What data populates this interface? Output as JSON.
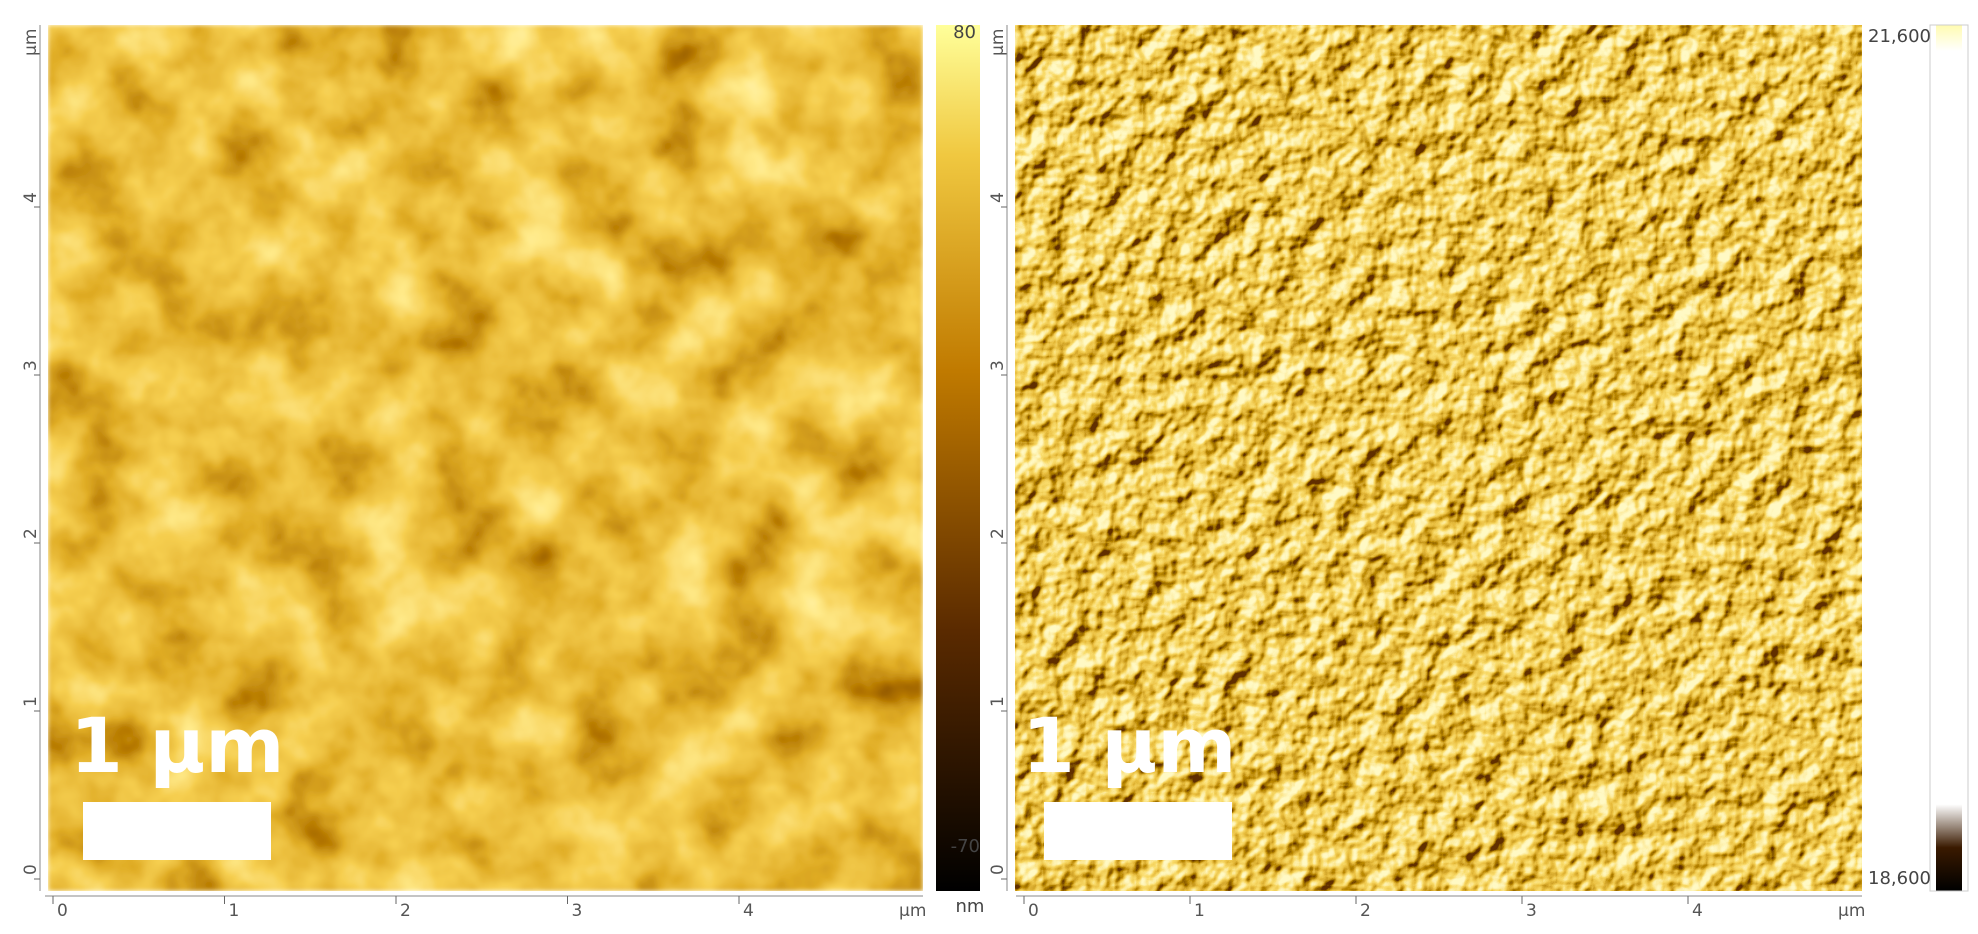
{
  "panels": [
    {
      "scale_bar": "1 µm",
      "x_ticks": [
        "0",
        "1",
        "2",
        "3",
        "4"
      ],
      "y_ticks": [
        "0",
        "1",
        "2",
        "3",
        "4"
      ],
      "axis_unit": "µm",
      "colorbar_max": "80",
      "colorbar_min": "-70",
      "colorbar_unit": "nm"
    },
    {
      "scale_bar": "1 µm",
      "x_ticks": [
        "0",
        "1",
        "2",
        "3",
        "4"
      ],
      "y_ticks": [
        "0",
        "1",
        "2",
        "3",
        "4"
      ],
      "axis_unit": "µm",
      "colorbar_max": "21,600",
      "colorbar_min": "18,600"
    }
  ]
}
